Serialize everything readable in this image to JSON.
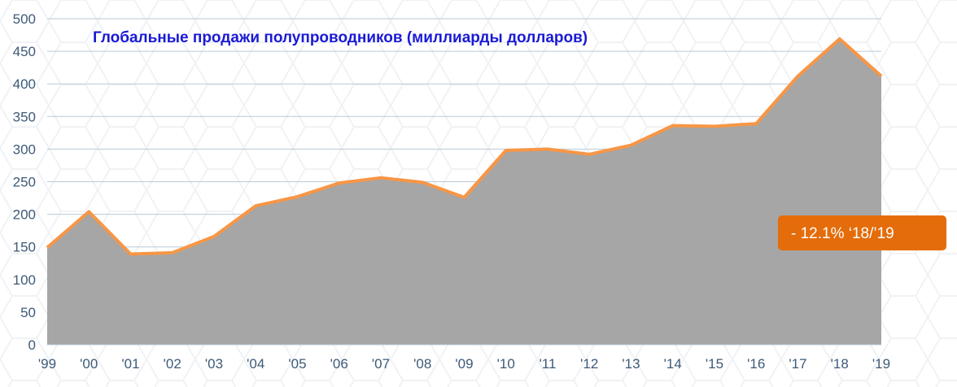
{
  "chart_data": {
    "type": "area",
    "title": "Глобальные продажи полупроводников (миллиарды долларов)",
    "xlabel": "",
    "ylabel": "",
    "categories": [
      "'99",
      "'00",
      "'01",
      "'02",
      "'03",
      "'04",
      "'05",
      "'06",
      "'07",
      "'08",
      "'09",
      "'10",
      "'11",
      "'12",
      "'13",
      "'14",
      "'15",
      "'16",
      "'17",
      "'18",
      "'19"
    ],
    "values": [
      149,
      204,
      139,
      141,
      166,
      213,
      227,
      248,
      256,
      249,
      226,
      298,
      300,
      292,
      306,
      336,
      335,
      339,
      412,
      469,
      412
    ],
    "ylim": [
      0,
      500
    ],
    "yticks": [
      "0",
      "50",
      "100",
      "150",
      "200",
      "250",
      "300",
      "350",
      "400",
      "450",
      "500"
    ],
    "grid": true,
    "colors": {
      "area_fill": "#a6a6a6",
      "line": "#f79646",
      "callout_bg": "#e46c0a",
      "title": "#1a1ad6",
      "tick": "#3d5a78",
      "grid": "#b9c9d6"
    },
    "annotation": {
      "text": "- 12.1% ‘18/’19"
    }
  }
}
